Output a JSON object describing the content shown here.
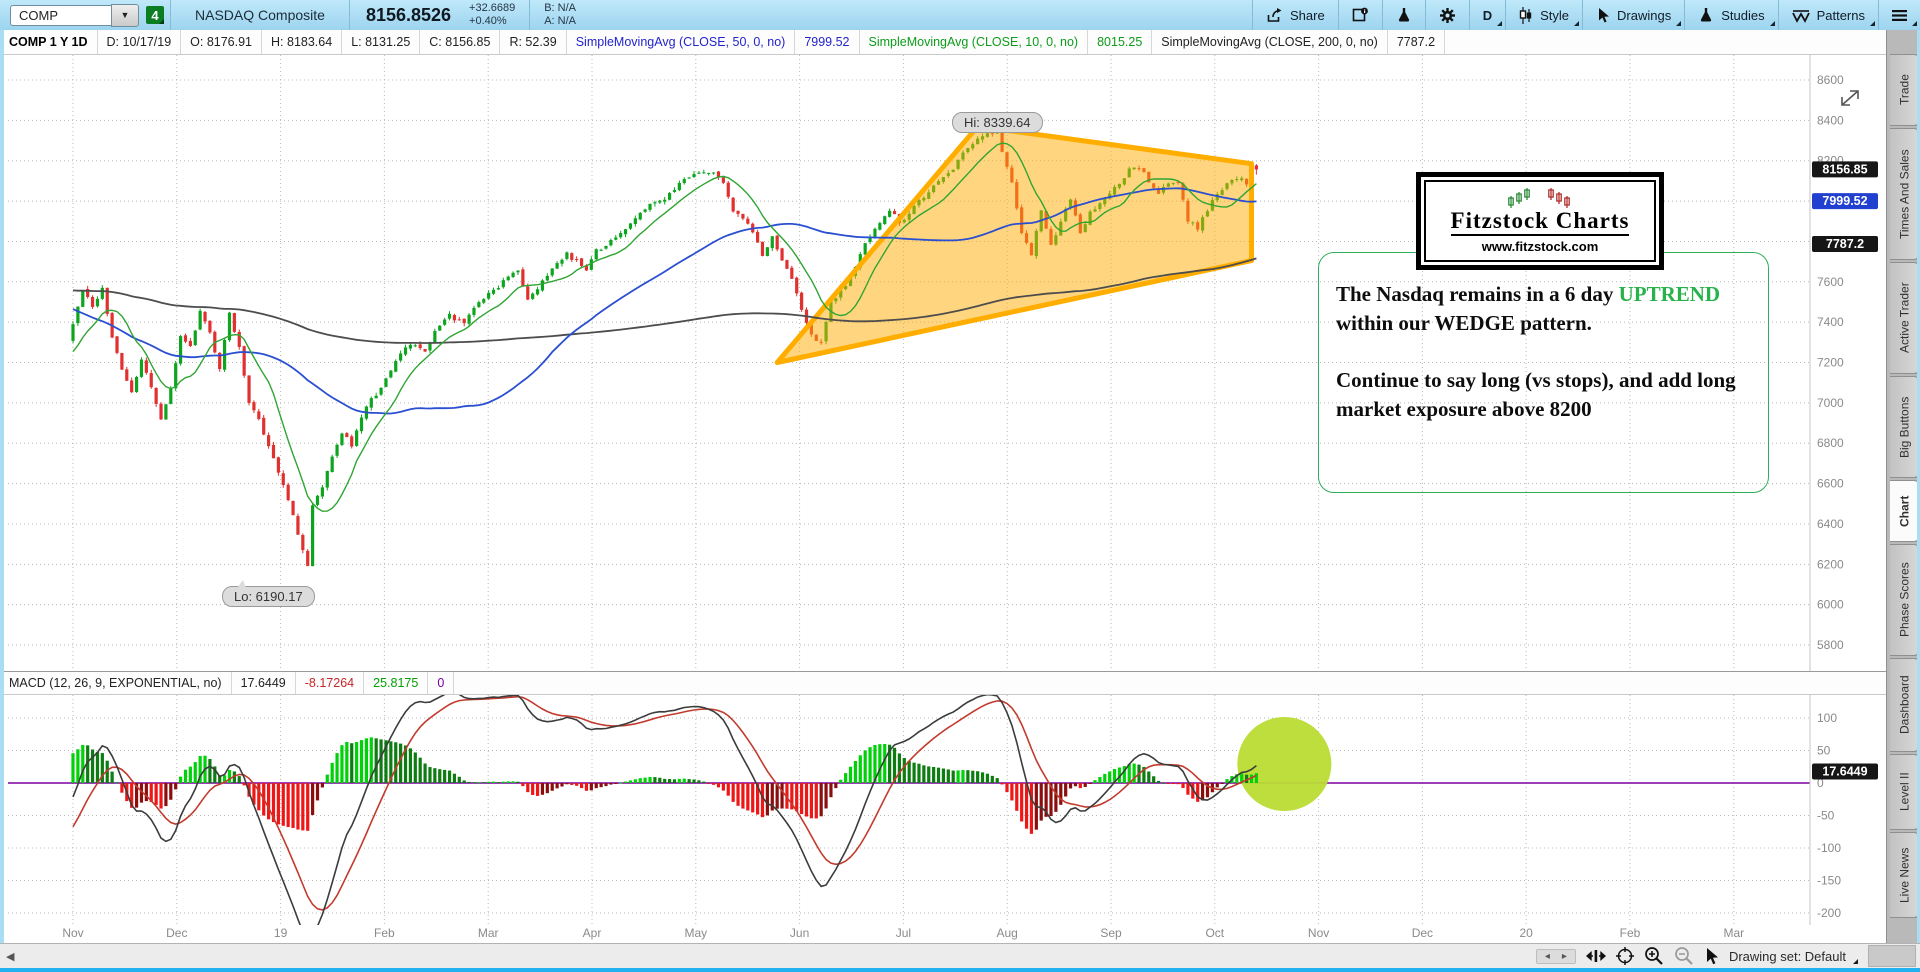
{
  "toolbar": {
    "symbol": "COMP",
    "watchlist_badge": "4",
    "symbol_description": "NASDAQ Composite",
    "last_price": "8156.8526",
    "change": "+32.6689",
    "change_pct": "+0.40%",
    "bid": "B: N/A",
    "ask": "A: N/A",
    "share_label": "Share",
    "timeframe_label": "D",
    "style_label": "Style",
    "drawings_label": "Drawings",
    "studies_label": "Studies",
    "patterns_label": "Patterns"
  },
  "chart_header": {
    "segments": [
      {
        "text": "COMP 1 Y 1D",
        "color": "#000000",
        "bold": true
      },
      {
        "text": "D: 10/17/19",
        "color": "#222222"
      },
      {
        "text": "O: 8176.91",
        "color": "#222222"
      },
      {
        "text": "H: 8183.64",
        "color": "#222222"
      },
      {
        "text": "L: 8131.25",
        "color": "#222222"
      },
      {
        "text": "C: 8156.85",
        "color": "#222222"
      },
      {
        "text": "R: 52.39",
        "color": "#222222"
      },
      {
        "text": "SimpleMovingAvg (CLOSE, 50, 0, no)",
        "color": "#2323cc"
      },
      {
        "text": "7999.52",
        "color": "#2323cc"
      },
      {
        "text": "SimpleMovingAvg (CLOSE, 10, 0, no)",
        "color": "#0d9c1a"
      },
      {
        "text": "8015.25",
        "color": "#0d9c1a"
      },
      {
        "text": "SimpleMovingAvg (CLOSE, 200, 0, no)",
        "color": "#222222"
      },
      {
        "text": "7787.2",
        "color": "#222222"
      }
    ]
  },
  "macd_header": {
    "segments": [
      {
        "text": "MACD (12, 26, 9, EXPONENTIAL, no)",
        "color": "#222222"
      },
      {
        "text": "17.6449",
        "color": "#222222"
      },
      {
        "text": "-8.17264",
        "color": "#c62828"
      },
      {
        "text": "25.8175",
        "color": "#00a300"
      },
      {
        "text": "0",
        "color": "#7700aa"
      }
    ]
  },
  "sidebar_tabs": [
    {
      "label": "Trade",
      "active": false
    },
    {
      "label": "Times And Sales",
      "active": false
    },
    {
      "label": "Active Trader",
      "active": false
    },
    {
      "label": "Big Buttons",
      "active": false
    },
    {
      "label": "Chart",
      "active": true
    },
    {
      "label": "Phase Scores",
      "active": false
    },
    {
      "label": "Dashboard",
      "active": false
    },
    {
      "label": "Level II",
      "active": false
    },
    {
      "label": "Live News",
      "active": false
    }
  ],
  "labels": {
    "hi": "Hi: 8339.64",
    "lo": "Lo: 6190.17"
  },
  "badges": {
    "last": "8156.85",
    "sma50": "7999.52",
    "sma200": "7787.2",
    "macd": "17.6449"
  },
  "logo": {
    "title": "Fitzstock Charts",
    "url": "www.fitzstock.com"
  },
  "annotation": {
    "p1": "The Nasdaq remains in a 6 day ",
    "uptrend": "UPTREND",
    "p1b": " within our  WEDGE pattern.",
    "p2": "Continue to say long (vs stops), and add long market exposure above 8200"
  },
  "status_bar": {
    "drawing_set_label": "Drawing set: Default"
  },
  "chart_data": {
    "type": "candlestick",
    "symbol": "COMP",
    "timeframe": "1 Y 1D",
    "price_axis": {
      "min": 5800,
      "max": 8600,
      "step": 200,
      "ticks": [
        8600,
        8400,
        8200,
        8000,
        7800,
        7600,
        7400,
        7200,
        7000,
        6800,
        6600,
        6400,
        6200,
        6000,
        5800
      ]
    },
    "x_axis": {
      "labels": [
        "Nov",
        "Dec",
        "19",
        "Feb",
        "Mar",
        "Apr",
        "May",
        "Jun",
        "Jul",
        "Aug",
        "Sep",
        "Oct",
        "Nov",
        "Dec",
        "20",
        "Feb",
        "Mar"
      ]
    },
    "macd_axis": {
      "ticks": [
        100,
        50,
        0,
        -50,
        -100,
        -150,
        -200
      ]
    },
    "macd_params": {
      "fast": 12,
      "slow": 26,
      "signal": 9,
      "average_type": "EXPONENTIAL"
    },
    "current": {
      "last": 8156.85,
      "sma50": 7999.52,
      "sma200": 7787.2,
      "macd_value": 17.6449
    },
    "high_anchor": {
      "day": 189,
      "price": 8339.64
    },
    "low_anchor": {
      "day": 48,
      "price": 6190.17
    },
    "last_candle": {
      "open": 8176.91,
      "high": 8183.64,
      "low": 8131.25,
      "close": 8156.85
    },
    "series": {
      "pre_waypoints": [
        [
          -65,
          7600
        ],
        [
          -58,
          7850
        ],
        [
          -50,
          8060
        ],
        [
          -44,
          7990
        ],
        [
          -36,
          7700
        ],
        [
          -28,
          7450
        ],
        [
          -20,
          7180
        ],
        [
          -13,
          7060
        ],
        [
          -7,
          7200
        ],
        [
          -1,
          7320
        ]
      ],
      "close_waypoints": [
        [
          0,
          7380
        ],
        [
          2,
          7560
        ],
        [
          4,
          7480
        ],
        [
          6,
          7570
        ],
        [
          8,
          7330
        ],
        [
          10,
          7160
        ],
        [
          12,
          7060
        ],
        [
          14,
          7210
        ],
        [
          16,
          7070
        ],
        [
          18,
          6910
        ],
        [
          20,
          7080
        ],
        [
          22,
          7330
        ],
        [
          24,
          7270
        ],
        [
          26,
          7450
        ],
        [
          28,
          7360
        ],
        [
          30,
          7160
        ],
        [
          32,
          7440
        ],
        [
          34,
          7280
        ],
        [
          36,
          7000
        ],
        [
          38,
          6910
        ],
        [
          40,
          6790
        ],
        [
          42,
          6660
        ],
        [
          44,
          6530
        ],
        [
          46,
          6350
        ],
        [
          48,
          6192
        ],
        [
          49,
          6490
        ],
        [
          51,
          6580
        ],
        [
          53,
          6740
        ],
        [
          55,
          6850
        ],
        [
          57,
          6790
        ],
        [
          60,
          6980
        ],
        [
          63,
          7080
        ],
        [
          65,
          7160
        ],
        [
          68,
          7270
        ],
        [
          70,
          7290
        ],
        [
          72,
          7250
        ],
        [
          74,
          7360
        ],
        [
          77,
          7430
        ],
        [
          80,
          7400
        ],
        [
          83,
          7500
        ],
        [
          86,
          7560
        ],
        [
          89,
          7620
        ],
        [
          91,
          7650
        ],
        [
          93,
          7500
        ],
        [
          95,
          7560
        ],
        [
          97,
          7640
        ],
        [
          99,
          7690
        ],
        [
          101,
          7740
        ],
        [
          103,
          7700
        ],
        [
          105,
          7660
        ],
        [
          107,
          7760
        ],
        [
          109,
          7780
        ],
        [
          111,
          7830
        ],
        [
          113,
          7870
        ],
        [
          115,
          7920
        ],
        [
          117,
          7960
        ],
        [
          119,
          7990
        ],
        [
          121,
          8010
        ],
        [
          123,
          8060
        ],
        [
          125,
          8100
        ],
        [
          127,
          8130
        ],
        [
          129,
          8140
        ],
        [
          131,
          8150
        ],
        [
          133,
          8100
        ],
        [
          135,
          7950
        ],
        [
          137,
          7910
        ],
        [
          139,
          7850
        ],
        [
          141,
          7730
        ],
        [
          143,
          7820
        ],
        [
          145,
          7700
        ],
        [
          147,
          7620
        ],
        [
          149,
          7450
        ],
        [
          151,
          7330
        ],
        [
          153,
          7300
        ],
        [
          155,
          7500
        ],
        [
          157,
          7560
        ],
        [
          159,
          7620
        ],
        [
          161,
          7740
        ],
        [
          163,
          7820
        ],
        [
          165,
          7900
        ],
        [
          167,
          7950
        ],
        [
          169,
          7900
        ],
        [
          171,
          7930
        ],
        [
          173,
          8000
        ],
        [
          175,
          8050
        ],
        [
          177,
          8090
        ],
        [
          179,
          8130
        ],
        [
          181,
          8200
        ],
        [
          183,
          8260
        ],
        [
          185,
          8300
        ],
        [
          187,
          8330
        ],
        [
          189,
          8339
        ],
        [
          190,
          8250
        ],
        [
          192,
          8090
        ],
        [
          194,
          7850
        ],
        [
          196,
          7740
        ],
        [
          198,
          7950
        ],
        [
          200,
          7790
        ],
        [
          202,
          7890
        ],
        [
          204,
          8010
        ],
        [
          206,
          7850
        ],
        [
          208,
          7940
        ],
        [
          210,
          7990
        ],
        [
          212,
          8040
        ],
        [
          214,
          8090
        ],
        [
          216,
          8150
        ],
        [
          218,
          8170
        ],
        [
          220,
          8100
        ],
        [
          222,
          8040
        ],
        [
          224,
          8080
        ],
        [
          226,
          8100
        ],
        [
          228,
          7900
        ],
        [
          230,
          7870
        ],
        [
          232,
          7960
        ],
        [
          234,
          8040
        ],
        [
          236,
          8080
        ],
        [
          238,
          8120
        ],
        [
          240,
          8090
        ],
        [
          242,
          8156.85
        ]
      ]
    },
    "overlays": {
      "sma": [
        {
          "period": 10,
          "color": "#2fa532"
        },
        {
          "period": 50,
          "color": "#2a4fd0"
        },
        {
          "period": 200,
          "color": "#4d4d4d"
        }
      ],
      "wedge": {
        "color": "#ffae00",
        "fill_opacity": 0.5,
        "points_day_price": [
          [
            144,
            7200
          ],
          [
            185,
            8370
          ],
          [
            241,
            8185
          ],
          [
            241,
            7705
          ]
        ]
      },
      "highlight_circle": {
        "color": "#b9dc33"
      }
    },
    "colors": {
      "candle_up": "#0da51f",
      "candle_down": "#e03030",
      "grid": "#b8b8b8",
      "axis_text": "#8a8a8a",
      "hist_pos_rise": "#00d20a",
      "hist_pos_fall": "#0d7d12",
      "hist_neg_fall": "#ef1616",
      "hist_neg_rise": "#8b0e0e",
      "macd_line": "#3c3c3c",
      "signal_line": "#c23b2e",
      "zero_line": "#7a00a0",
      "badge_last_bg": "#161616",
      "badge_sma50_bg": "#2240cf",
      "badge_sma200_bg": "#161616",
      "badge_macd_bg": "#161616"
    }
  }
}
